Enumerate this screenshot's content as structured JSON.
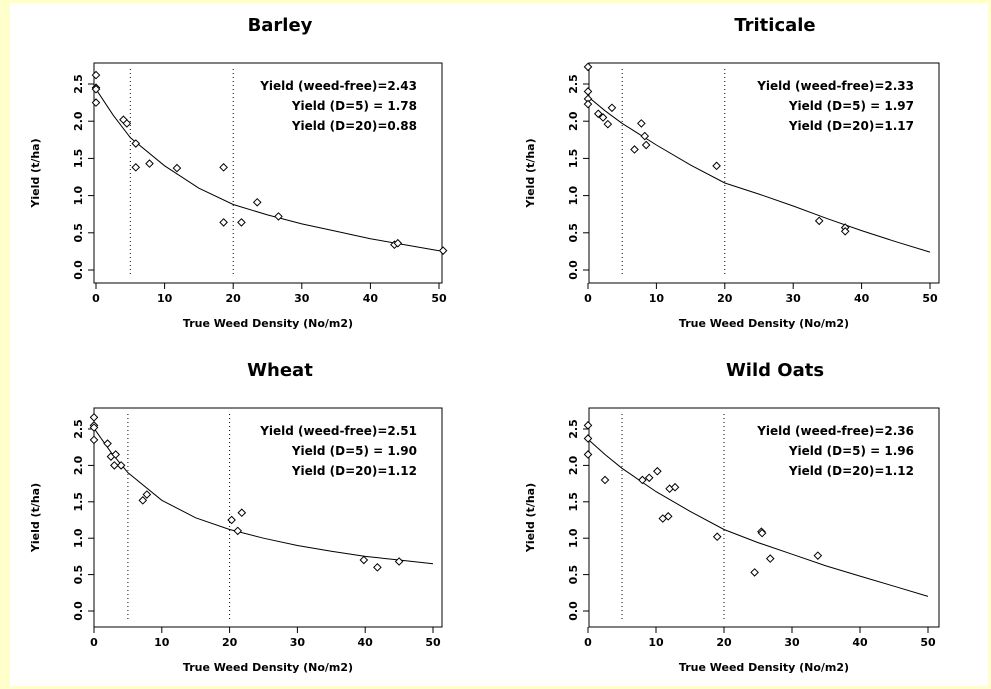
{
  "background_color": "#ffffcc",
  "chart_data": [
    {
      "type": "scatter",
      "title": "Barley",
      "xlabel": "True Weed Density (No/m2)",
      "ylabel": "Yield (t/ha)",
      "xlim": [
        0,
        50
      ],
      "ylim": [
        0,
        2.5
      ],
      "xticks": [
        "0",
        "10",
        "20",
        "30",
        "40",
        "50"
      ],
      "yticks": [
        "0.0",
        "0.5",
        "1.0",
        "1.5",
        "2.0",
        "2.5"
      ],
      "grid": false,
      "reference_lines_x": [
        5,
        20
      ],
      "annotations": [
        "Yield (weed-free)=2.43",
        "Yield (D=5) = 1.78",
        "Yield (D=20)=0.88"
      ],
      "points": [
        {
          "x": 0,
          "y": 2.62
        },
        {
          "x": 0,
          "y": 2.45
        },
        {
          "x": 0,
          "y": 2.43
        },
        {
          "x": 0,
          "y": 2.25
        },
        {
          "x": 4,
          "y": 2.02
        },
        {
          "x": 4.5,
          "y": 1.97
        },
        {
          "x": 5.8,
          "y": 1.7
        },
        {
          "x": 5.8,
          "y": 1.38
        },
        {
          "x": 7.8,
          "y": 1.43
        },
        {
          "x": 11.8,
          "y": 1.37
        },
        {
          "x": 18.6,
          "y": 1.38
        },
        {
          "x": 18.6,
          "y": 0.64
        },
        {
          "x": 21.2,
          "y": 0.64
        },
        {
          "x": 23.5,
          "y": 0.91
        },
        {
          "x": 26.6,
          "y": 0.72
        },
        {
          "x": 43.5,
          "y": 0.34
        },
        {
          "x": 44,
          "y": 0.36
        },
        {
          "x": 50.6,
          "y": 0.26
        }
      ],
      "fitted_curve": {
        "x": [
          0,
          2.5,
          5,
          10,
          15,
          20,
          25,
          30,
          35,
          40,
          45,
          50
        ],
        "y": [
          2.43,
          2.08,
          1.78,
          1.4,
          1.1,
          0.88,
          0.74,
          0.62,
          0.52,
          0.42,
          0.34,
          0.26
        ]
      }
    },
    {
      "type": "scatter",
      "title": "Triticale",
      "xlabel": "True Weed Density (No/m2)",
      "ylabel": "Yield (t/ha)",
      "xlim": [
        0,
        50
      ],
      "ylim": [
        0,
        2.5
      ],
      "xticks": [
        "0",
        "10",
        "20",
        "30",
        "40",
        "50"
      ],
      "yticks": [
        "0.0",
        "0.5",
        "1.0",
        "1.5",
        "2.0",
        "2.5"
      ],
      "grid": false,
      "reference_lines_x": [
        5,
        20
      ],
      "annotations": [
        "Yield (weed-free)=2.33",
        "Yield (D=5) = 1.97",
        "Yield (D=20)=1.17"
      ],
      "points": [
        {
          "x": 0,
          "y": 2.73
        },
        {
          "x": 0,
          "y": 2.4
        },
        {
          "x": 0,
          "y": 2.3
        },
        {
          "x": 0,
          "y": 2.23
        },
        {
          "x": 1.5,
          "y": 2.1
        },
        {
          "x": 2.2,
          "y": 2.05
        },
        {
          "x": 2.9,
          "y": 1.96
        },
        {
          "x": 3.5,
          "y": 2.18
        },
        {
          "x": 6.8,
          "y": 1.62
        },
        {
          "x": 7.8,
          "y": 1.97
        },
        {
          "x": 8.3,
          "y": 1.8
        },
        {
          "x": 8.5,
          "y": 1.68
        },
        {
          "x": 18.8,
          "y": 1.4
        },
        {
          "x": 33.8,
          "y": 0.66
        },
        {
          "x": 37.6,
          "y": 0.57
        },
        {
          "x": 37.6,
          "y": 0.52
        }
      ],
      "fitted_curve": {
        "x": [
          0,
          2.5,
          5,
          10,
          15,
          20,
          25,
          30,
          35,
          40,
          45,
          50
        ],
        "y": [
          2.33,
          2.14,
          1.97,
          1.68,
          1.41,
          1.17,
          1.02,
          0.86,
          0.69,
          0.53,
          0.38,
          0.24
        ]
      }
    },
    {
      "type": "scatter",
      "title": "Wheat",
      "xlabel": "True Weed Density (No/m2)",
      "ylabel": "Yield (t/ha)",
      "xlim": [
        0,
        50
      ],
      "ylim": [
        0,
        2.5
      ],
      "xticks": [
        "0",
        "10",
        "20",
        "30",
        "40",
        "50"
      ],
      "yticks": [
        "0.0",
        "0.5",
        "1.0",
        "1.5",
        "2.0",
        "2.5"
      ],
      "grid": false,
      "reference_lines_x": [
        5,
        20
      ],
      "annotations": [
        "Yield (weed-free)=2.51",
        "Yield (D=5) = 1.90",
        "Yield (D=20)=1.12"
      ],
      "points": [
        {
          "x": 0,
          "y": 2.66
        },
        {
          "x": 0,
          "y": 2.55
        },
        {
          "x": 0,
          "y": 2.52
        },
        {
          "x": 0,
          "y": 2.35
        },
        {
          "x": 2,
          "y": 2.3
        },
        {
          "x": 2.5,
          "y": 2.12
        },
        {
          "x": 3,
          "y": 2.0
        },
        {
          "x": 3.2,
          "y": 2.15
        },
        {
          "x": 4,
          "y": 2.0
        },
        {
          "x": 7.2,
          "y": 1.52
        },
        {
          "x": 7.8,
          "y": 1.6
        },
        {
          "x": 20.3,
          "y": 1.25
        },
        {
          "x": 21.2,
          "y": 1.1
        },
        {
          "x": 21.8,
          "y": 1.35
        },
        {
          "x": 39.8,
          "y": 0.7
        },
        {
          "x": 41.8,
          "y": 0.6
        },
        {
          "x": 45,
          "y": 0.68
        }
      ],
      "fitted_curve": {
        "x": [
          0,
          2.5,
          5,
          10,
          15,
          20,
          25,
          30,
          35,
          40,
          45,
          50
        ],
        "y": [
          2.51,
          2.18,
          1.9,
          1.52,
          1.28,
          1.12,
          1.0,
          0.9,
          0.82,
          0.75,
          0.7,
          0.65
        ]
      }
    },
    {
      "type": "scatter",
      "title": "Wild Oats",
      "xlabel": "True Weed Density (No/m2)",
      "ylabel": "Yield (t/ha)",
      "xlim": [
        0,
        50
      ],
      "ylim": [
        0,
        2.5
      ],
      "xticks": [
        "0",
        "10",
        "20",
        "30",
        "40",
        "50"
      ],
      "yticks": [
        "0.0",
        "0.5",
        "1.0",
        "1.5",
        "2.0",
        "2.5"
      ],
      "grid": false,
      "reference_lines_x": [
        5,
        20
      ],
      "annotations": [
        "Yield (weed-free)=2.36",
        "Yield (D=5) = 1.96",
        "Yield (D=20)=1.12"
      ],
      "points": [
        {
          "x": 0,
          "y": 2.55
        },
        {
          "x": 0,
          "y": 2.37
        },
        {
          "x": 0,
          "y": 2.15
        },
        {
          "x": 2.5,
          "y": 1.8
        },
        {
          "x": 8,
          "y": 1.8
        },
        {
          "x": 9,
          "y": 1.83
        },
        {
          "x": 10.2,
          "y": 1.92
        },
        {
          "x": 11,
          "y": 1.27
        },
        {
          "x": 11.8,
          "y": 1.3
        },
        {
          "x": 12,
          "y": 1.68
        },
        {
          "x": 12.8,
          "y": 1.7
        },
        {
          "x": 19,
          "y": 1.02
        },
        {
          "x": 24.5,
          "y": 0.53
        },
        {
          "x": 25.5,
          "y": 1.09
        },
        {
          "x": 25.6,
          "y": 1.07
        },
        {
          "x": 26.8,
          "y": 0.72
        },
        {
          "x": 33.8,
          "y": 0.76
        }
      ],
      "fitted_curve": {
        "x": [
          0,
          2.5,
          5,
          10,
          15,
          20,
          25,
          30,
          35,
          40,
          45,
          50
        ],
        "y": [
          2.36,
          2.15,
          1.96,
          1.64,
          1.37,
          1.12,
          0.94,
          0.78,
          0.62,
          0.48,
          0.34,
          0.2
        ]
      }
    }
  ]
}
